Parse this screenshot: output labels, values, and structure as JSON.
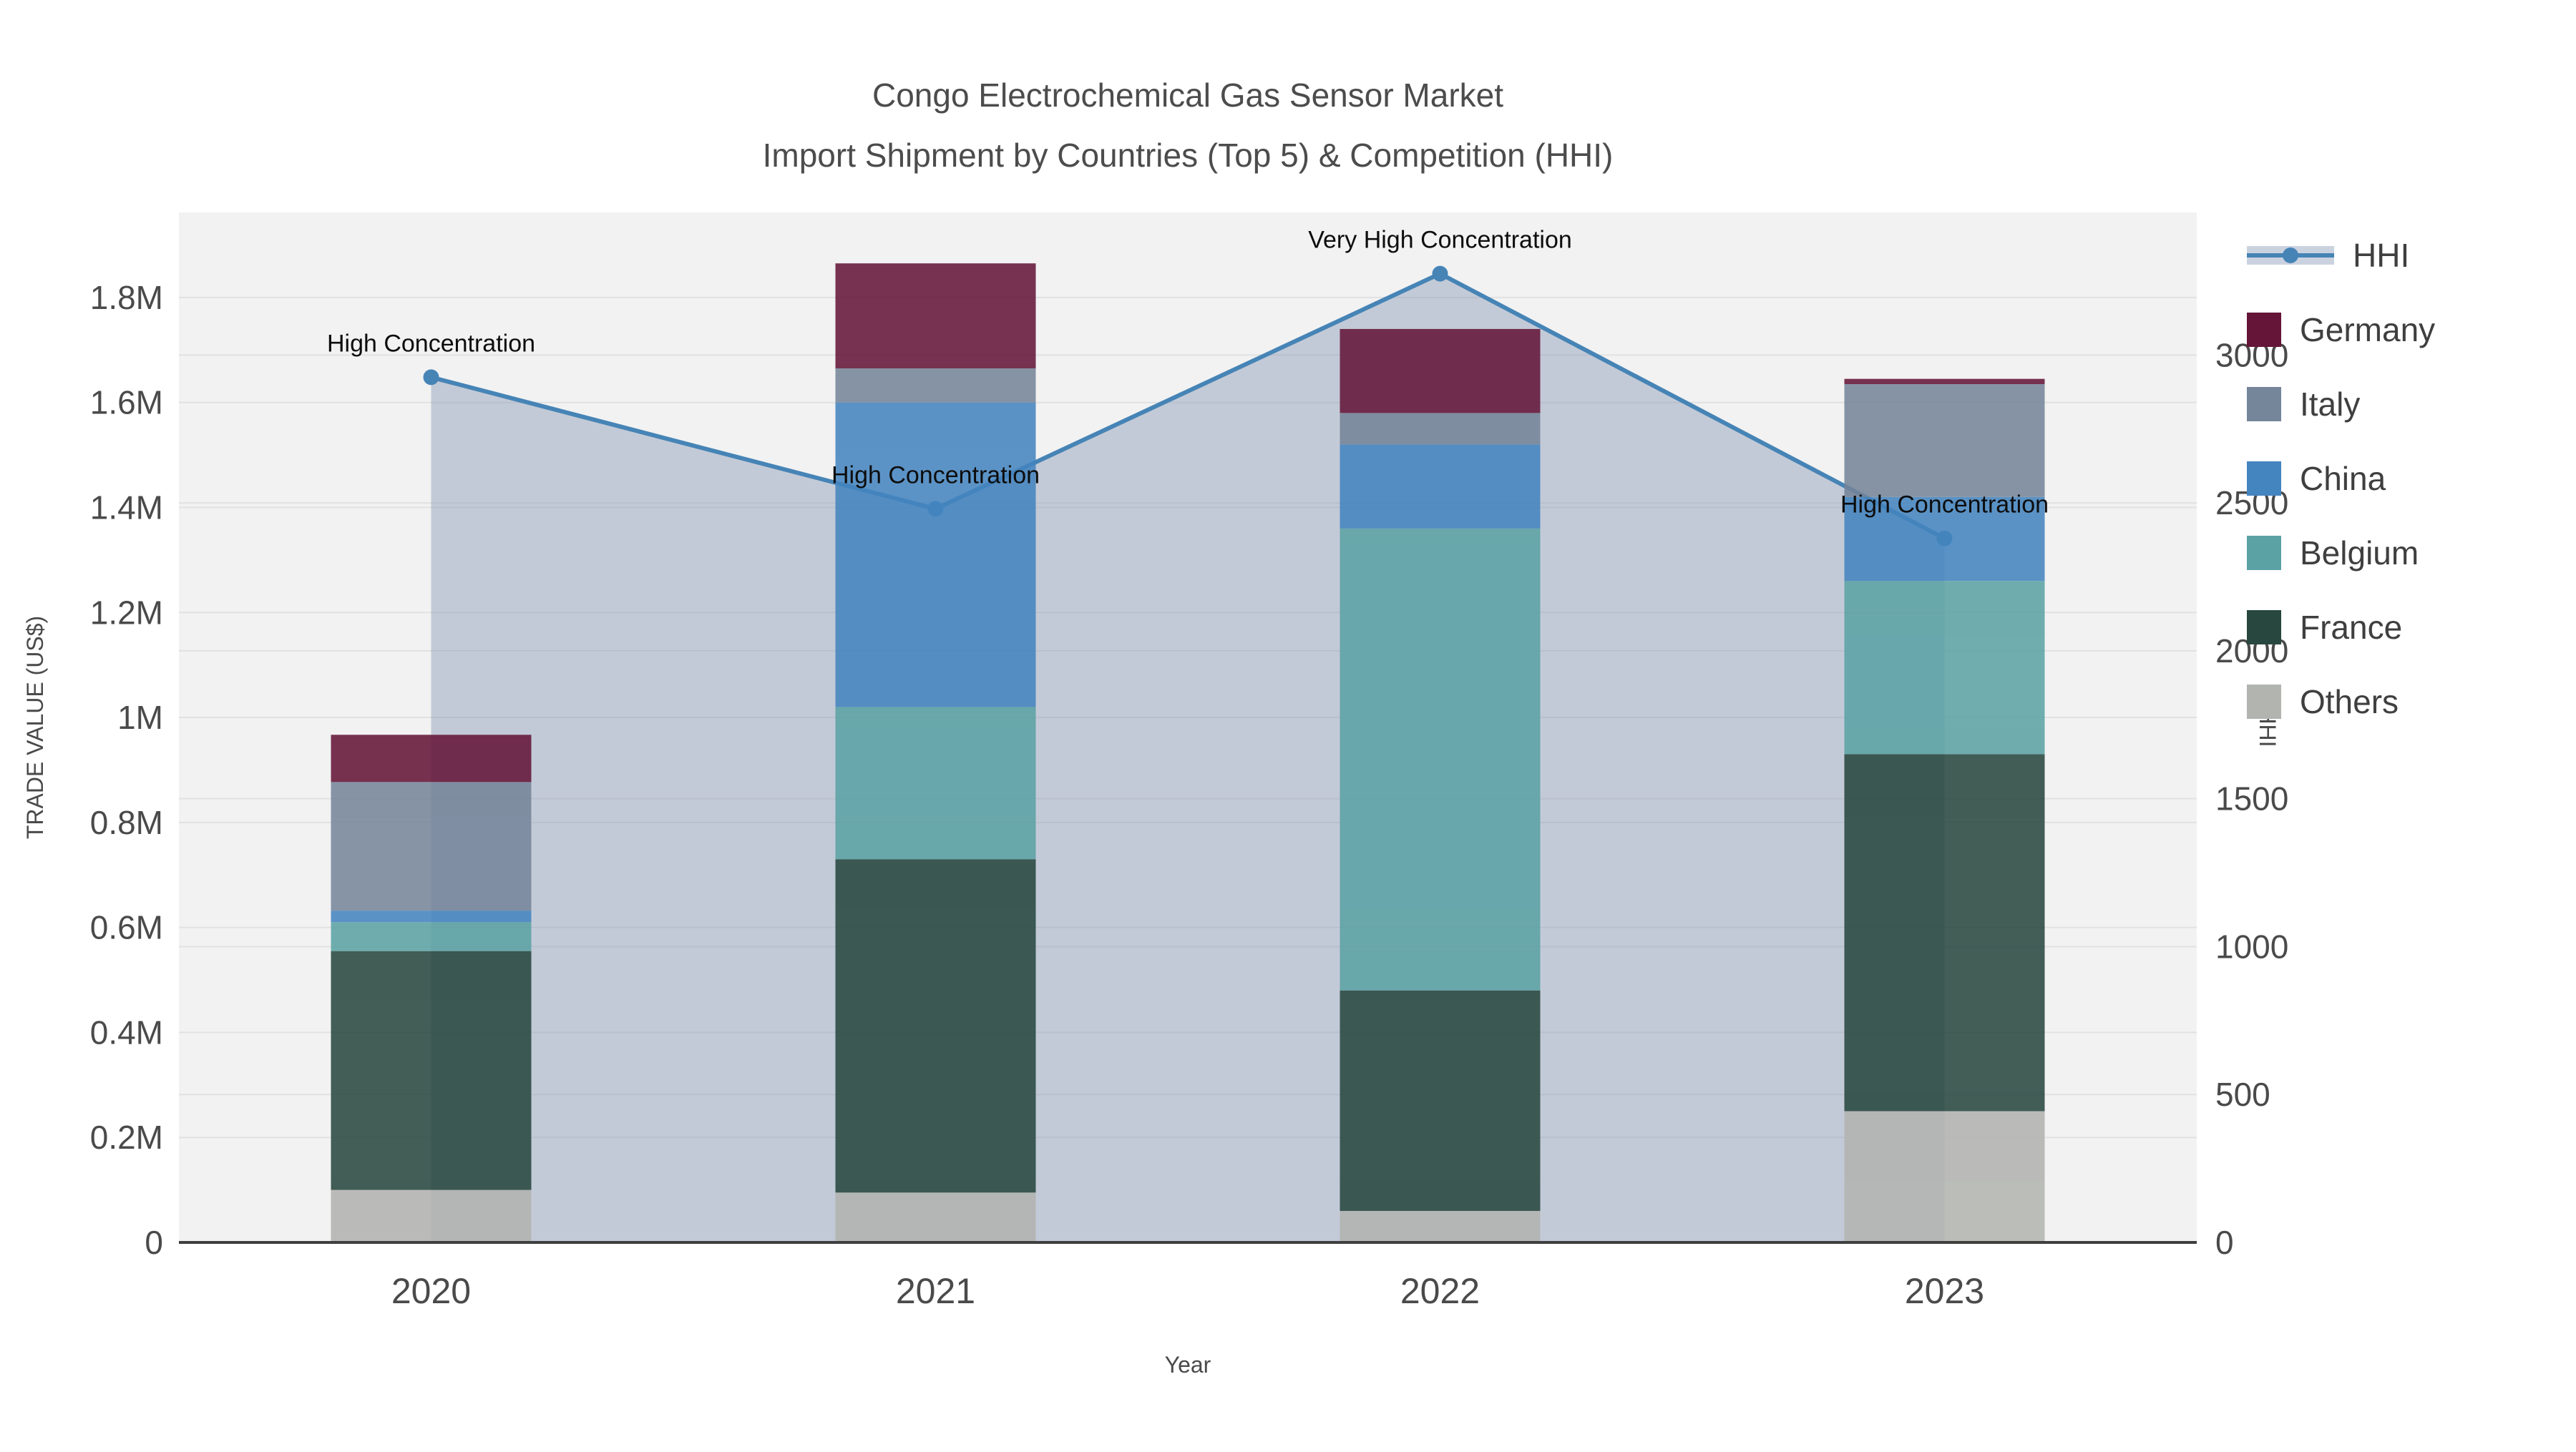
{
  "title": {
    "line1": "Congo Electrochemical Gas Sensor Market",
    "line2": "Import Shipment by Countries (Top 5) & Competition (HHI)"
  },
  "chart_data": {
    "type": "bar",
    "subtype": "stacked-bars-with-line-overlay",
    "categories": [
      "2020",
      "2021",
      "2022",
      "2023"
    ],
    "xlabel": "Year",
    "ylabel": "TRADE VALUE (US$)",
    "y2label": "HHI",
    "series": [
      {
        "name": "Others",
        "color": "#b2b4b0",
        "values": [
          100000,
          95000,
          60000,
          250000
        ]
      },
      {
        "name": "France",
        "color": "#27473f",
        "values": [
          455000,
          635000,
          420000,
          680000
        ]
      },
      {
        "name": "Belgium",
        "color": "#5ba2a4",
        "values": [
          55000,
          290000,
          880000,
          330000
        ]
      },
      {
        "name": "China",
        "color": "#4484bf",
        "values": [
          22000,
          580000,
          160000,
          160000
        ]
      },
      {
        "name": "Italy",
        "color": "#75859a",
        "values": [
          245000,
          65000,
          60000,
          215000
        ]
      },
      {
        "name": "Germany",
        "color": "#641538",
        "values": [
          90000,
          200000,
          160000,
          10000
        ]
      }
    ],
    "line_series": {
      "name": "HHI",
      "color": "#4684b6",
      "fill_color": "rgba(130,148,178,0.42)",
      "values": [
        2925,
        2480,
        3275,
        2380
      ]
    },
    "annotations": [
      {
        "category": "2020",
        "text": "High Concentration"
      },
      {
        "category": "2021",
        "text": "High Concentration"
      },
      {
        "category": "2022",
        "text": "Very High Concentration"
      },
      {
        "category": "2023",
        "text": "High Concentration"
      }
    ],
    "y_ticks": [
      {
        "value": 0,
        "label": "0"
      },
      {
        "value": 200000,
        "label": "0.2M"
      },
      {
        "value": 400000,
        "label": "0.4M"
      },
      {
        "value": 600000,
        "label": "0.6M"
      },
      {
        "value": 800000,
        "label": "0.8M"
      },
      {
        "value": 1000000,
        "label": "1M"
      },
      {
        "value": 1200000,
        "label": "1.2M"
      },
      {
        "value": 1400000,
        "label": "1.4M"
      },
      {
        "value": 1600000,
        "label": "1.6M"
      },
      {
        "value": 1800000,
        "label": "1.8M"
      }
    ],
    "ylim": [
      0,
      1962000
    ],
    "y2_ticks": [
      {
        "value": 0,
        "label": "0"
      },
      {
        "value": 500,
        "label": "500"
      },
      {
        "value": 1000,
        "label": "1000"
      },
      {
        "value": 1500,
        "label": "1500"
      },
      {
        "value": 2000,
        "label": "2000"
      },
      {
        "value": 2500,
        "label": "2500"
      },
      {
        "value": 3000,
        "label": "3000"
      }
    ],
    "y2lim": [
      0,
      3482
    ],
    "grid": true,
    "legend_position": "right",
    "legend_items": [
      "HHI",
      "Germany",
      "Italy",
      "China",
      "Belgium",
      "France",
      "Others"
    ],
    "plot_bg_color": "#f2f2f2",
    "grid_color": "#e1e1e1",
    "axis_line_color": "#3f3f3f",
    "tick_label_color": "#4a4a4a",
    "annotation_color": "#0d0d0d",
    "bar_opacity": 0.87
  }
}
